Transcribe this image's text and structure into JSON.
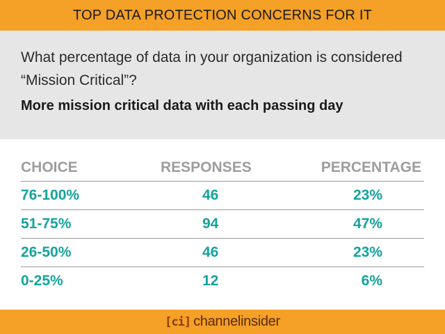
{
  "header": {
    "title": "TOP DATA PROTECTION CONCERNS FOR IT"
  },
  "question": {
    "text": "What percentage of data in your organization is considered “Mission Critical”?",
    "subheadline": "More mission critical data with each passing day"
  },
  "table": {
    "columns": [
      "CHOICE",
      "RESPONSES",
      "PERCENTAGE"
    ],
    "rows": [
      {
        "choice": "76-100%",
        "responses": "46",
        "percentage": "23%"
      },
      {
        "choice": "51-75%",
        "responses": "94",
        "percentage": "47%"
      },
      {
        "choice": "26-50%",
        "responses": "46",
        "percentage": "23%"
      },
      {
        "choice": "0-25%",
        "responses": "12",
        "percentage": "6%"
      }
    ]
  },
  "footer": {
    "logo_mark": "[ci]",
    "logo_text": "channelinsider"
  },
  "colors": {
    "accent": "#f5a026",
    "panel": "#e6e6e6",
    "data_text": "#14a39c",
    "header_text": "#9d9d9d"
  }
}
